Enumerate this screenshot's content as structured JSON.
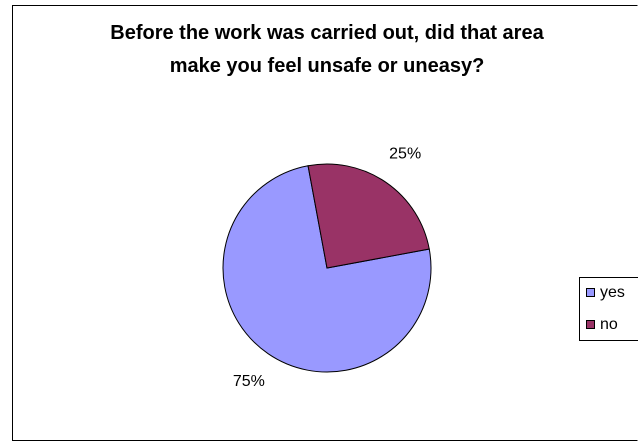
{
  "chart_data": {
    "type": "pie",
    "title": "Before the work was carried out, did that area make you feel unsafe or uneasy?",
    "categories": [
      "yes",
      "no"
    ],
    "values": [
      75,
      25
    ],
    "value_labels": [
      "75%",
      "25%"
    ],
    "colors": [
      "#9999ff",
      "#993366"
    ],
    "legend": "right"
  }
}
